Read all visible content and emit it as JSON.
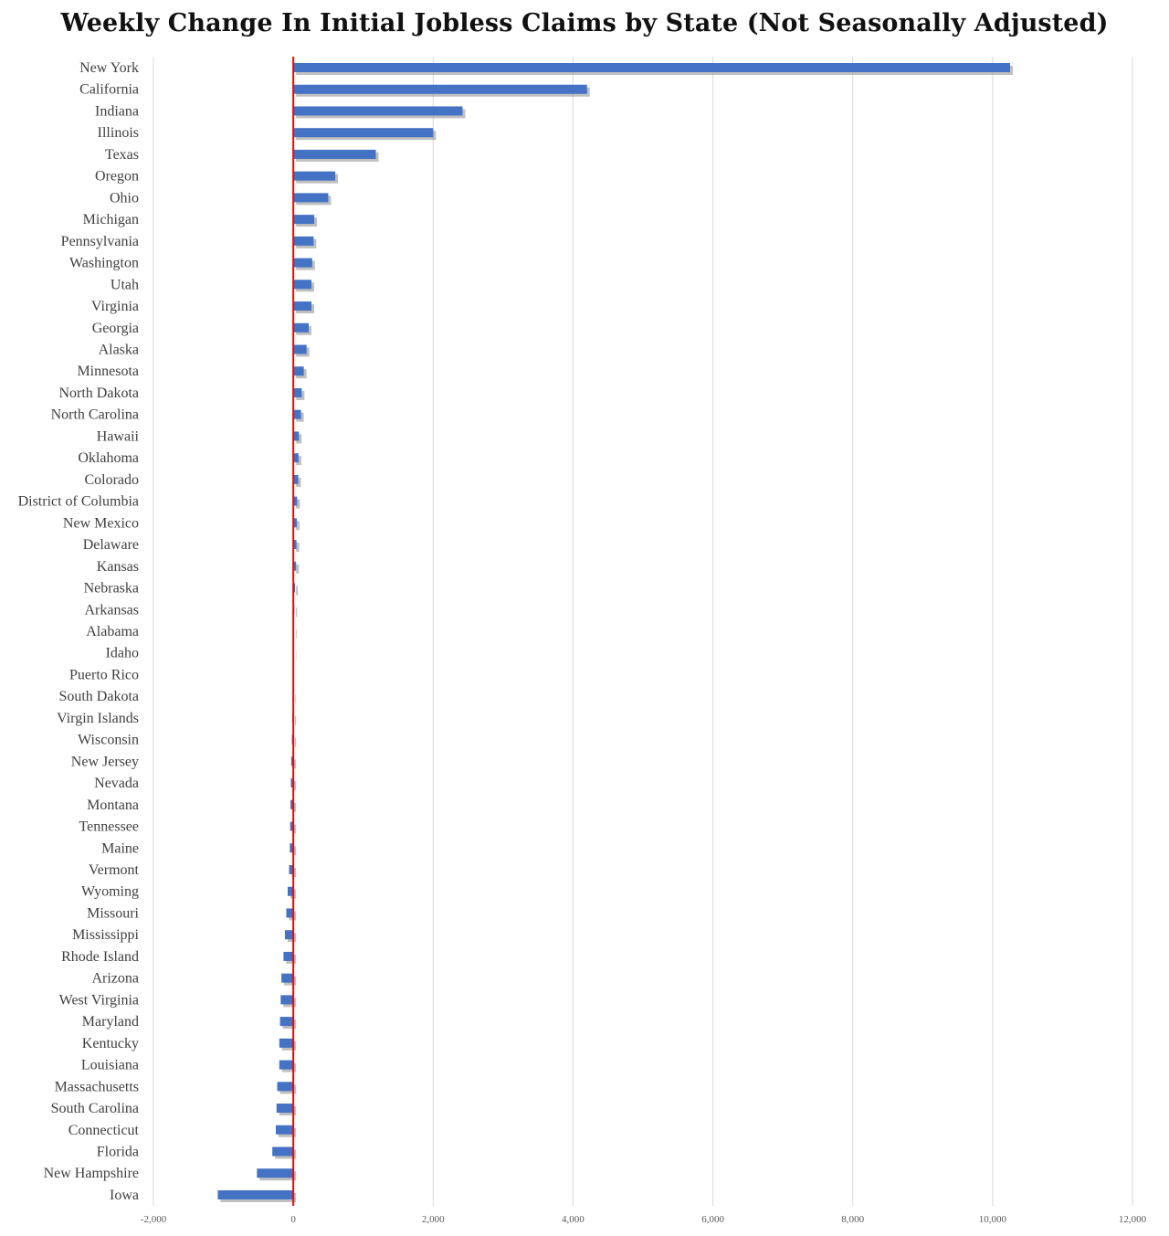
{
  "chart_data": {
    "type": "bar",
    "orientation": "horizontal",
    "title": "Weekly Change In Initial Jobless Claims by State (Not Seasonally Adjusted)",
    "xlabel": "",
    "ylabel": "",
    "xlim": [
      -2000,
      12000
    ],
    "x_ticks": [
      -2000,
      0,
      2000,
      4000,
      6000,
      8000,
      10000,
      12000
    ],
    "x_tick_labels": [
      "-2,000",
      "0",
      "2,000",
      "4,000",
      "6,000",
      "8,000",
      "10,000",
      "12,000"
    ],
    "grid": "vertical",
    "legend": "none",
    "colors": {
      "bar": "#4472c4",
      "zero_line": "#ff0000",
      "grid": "#d9d9d9"
    },
    "categories": [
      "New York",
      "California",
      "Indiana",
      "Illinois",
      "Texas",
      "Oregon",
      "Ohio",
      "Michigan",
      "Pennsylvania",
      "Washington",
      "Utah",
      "Virginia",
      "Georgia",
      "Alaska",
      "Minnesota",
      "North Dakota",
      "North Carolina",
      "Hawaii",
      "Oklahoma",
      "Colorado",
      "District of Columbia",
      "New Mexico",
      "Delaware",
      "Kansas",
      "Nebraska",
      "Arkansas",
      "Alabama",
      "Idaho",
      "Puerto Rico",
      "South Dakota",
      "Virgin Islands",
      "Wisconsin",
      "New Jersey",
      "Nevada",
      "Montana",
      "Tennessee",
      "Maine",
      "Vermont",
      "Wyoming",
      "Missouri",
      "Mississippi",
      "Rhode Island",
      "Arizona",
      "West Virginia",
      "Maryland",
      "Kentucky",
      "Louisiana",
      "Massachusetts",
      "South Carolina",
      "Connecticut",
      "Florida",
      "New Hampshire",
      "Iowa"
    ],
    "values": [
      10250,
      4200,
      2420,
      2000,
      1180,
      600,
      500,
      300,
      290,
      270,
      260,
      260,
      220,
      190,
      150,
      120,
      110,
      80,
      75,
      70,
      55,
      50,
      45,
      40,
      25,
      15,
      10,
      5,
      0,
      -10,
      -15,
      -20,
      -30,
      -35,
      -40,
      -45,
      -50,
      -60,
      -80,
      -100,
      -120,
      -140,
      -170,
      -180,
      -190,
      -200,
      -200,
      -230,
      -240,
      -250,
      -300,
      -520,
      -1080
    ]
  }
}
